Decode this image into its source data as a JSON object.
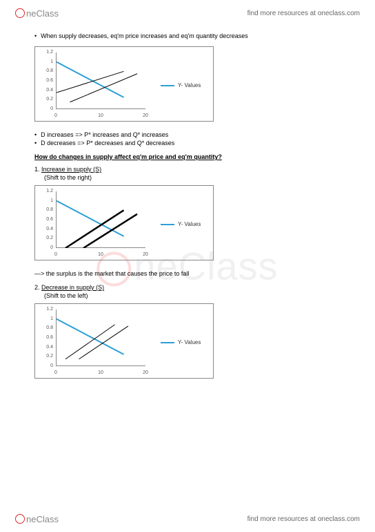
{
  "brand": {
    "one": "ne",
    "class": "Class",
    "prefix_circle": true
  },
  "header_link": "find more resources at oneclass.com",
  "footer_link": "find more resources at oneclass.com",
  "watermark_text": "neClass",
  "intro_bullet": "When supply decreases, eq'm price increases and eq'm quantity decreases",
  "sub_bullets": [
    "D increases => P* increases and Q* increases",
    "D decreases => P* decreases and Q* decreases"
  ],
  "heading": "How do changes in supply affect eq'm price and eq'm quantity?",
  "item1_num": "1.",
  "item1_label": "Increase in supply (S)",
  "item1_sub": "(Shift to the right)",
  "note1": "—> the surplus is the market that causes the price to fall",
  "item2_num": "2.",
  "item2_label": "Decrease in supply (S)",
  "item2_sub": "(Shift to the left)",
  "legend_label": "Y- Values",
  "chart_common": {
    "y_ticks": [
      "0",
      "0.2",
      "0.4",
      "0.6",
      "0.8",
      "1",
      "1.2"
    ],
    "x_ticks": [
      "0",
      "10",
      "20"
    ],
    "xlim": [
      0,
      20
    ],
    "ylim": [
      0,
      1.2
    ],
    "background_color": "#ffffff",
    "axis_color": "#888888",
    "tick_fontsize": 7
  },
  "chart1": {
    "type": "line",
    "series": [
      {
        "color": "#2a9fd6",
        "width": 2,
        "points": [
          [
            0,
            1.0
          ],
          [
            15,
            0.25
          ]
        ]
      },
      {
        "color": "#000000",
        "width": 1,
        "points": [
          [
            0,
            0.35
          ],
          [
            15,
            0.8
          ]
        ]
      },
      {
        "color": "#000000",
        "width": 1,
        "points": [
          [
            3,
            0.15
          ],
          [
            18,
            0.75
          ]
        ]
      }
    ],
    "legend_color": "#2a9fd6",
    "legend_label": "Y- Values"
  },
  "chart2": {
    "type": "line",
    "series": [
      {
        "color": "#2a9fd6",
        "width": 2,
        "points": [
          [
            0,
            1.0
          ],
          [
            15,
            0.25
          ]
        ]
      },
      {
        "color": "#000000",
        "width": 2.5,
        "points": [
          [
            2,
            0.0
          ],
          [
            15,
            0.8
          ]
        ]
      },
      {
        "color": "#000000",
        "width": 2.5,
        "points": [
          [
            6,
            0.0
          ],
          [
            18,
            0.72
          ]
        ]
      }
    ],
    "legend_color": "#2a9fd6",
    "legend_label": "Y- Values"
  },
  "chart3": {
    "type": "line",
    "series": [
      {
        "color": "#2a9fd6",
        "width": 2,
        "points": [
          [
            0,
            1.0
          ],
          [
            15,
            0.25
          ]
        ]
      },
      {
        "color": "#000000",
        "width": 1,
        "points": [
          [
            2,
            0.15
          ],
          [
            13,
            0.88
          ]
        ]
      },
      {
        "color": "#000000",
        "width": 1,
        "points": [
          [
            5,
            0.15
          ],
          [
            16,
            0.85
          ]
        ]
      }
    ],
    "legend_color": "#2a9fd6",
    "legend_label": "Y- Values"
  }
}
